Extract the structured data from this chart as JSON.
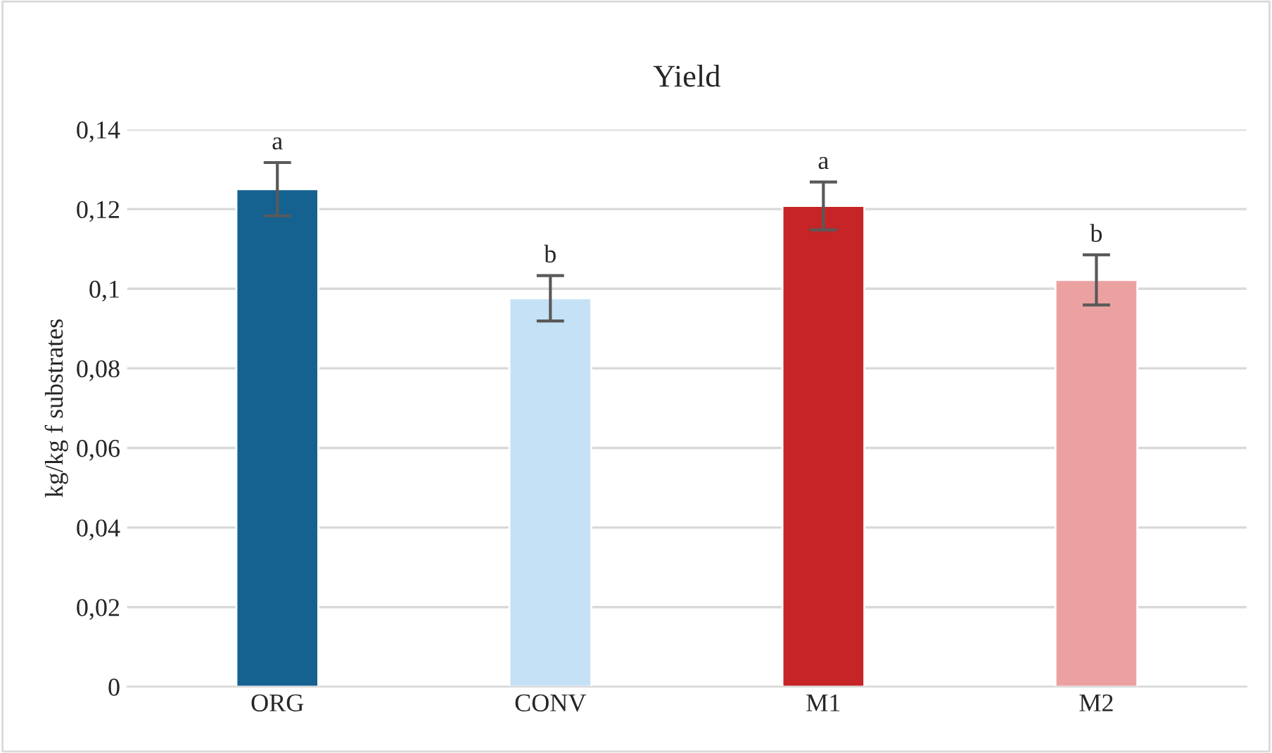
{
  "chart_data": {
    "type": "bar",
    "title": "Yield",
    "ylabel": "kg/kg f substrates",
    "categories": [
      "ORG",
      "CONV",
      "M1",
      "M2"
    ],
    "values": [
      0.125,
      0.0976,
      0.1208,
      0.1022
    ],
    "errors": [
      0.0067,
      0.0057,
      0.006,
      0.0063
    ],
    "colors": [
      "#156291",
      "#c5e1f6",
      "#c62426",
      "#eca1a1"
    ],
    "ylim": [
      0,
      0.14
    ],
    "yticks": [
      {
        "value": 0,
        "label": "0"
      },
      {
        "value": 0.02,
        "label": "0,02"
      },
      {
        "value": 0.04,
        "label": "0,04"
      },
      {
        "value": 0.06,
        "label": "0,06"
      },
      {
        "value": 0.08,
        "label": "0,08"
      },
      {
        "value": 0.1,
        "label": "0,1"
      },
      {
        "value": 0.12,
        "label": "0,12"
      },
      {
        "value": 0.14,
        "label": "0,14"
      }
    ],
    "grid": "y",
    "annotations": [
      "a",
      "b",
      "a",
      "b"
    ]
  }
}
